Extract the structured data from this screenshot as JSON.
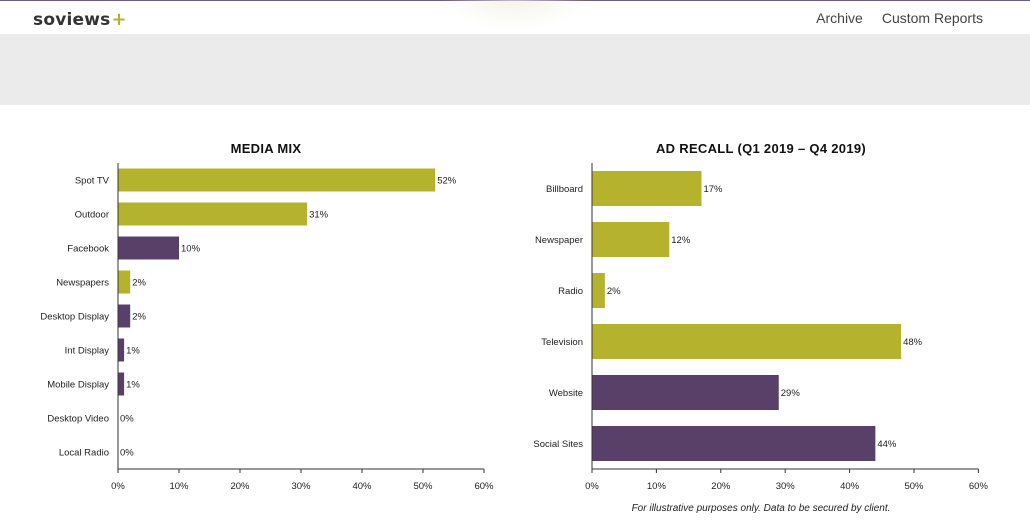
{
  "header": {
    "logo_text": "soviews",
    "logo_plus": "+",
    "nav": [
      "Archive",
      "Custom Reports"
    ]
  },
  "colors": {
    "olive": "#b5b32e",
    "purple": "#594069",
    "axis": "#333333"
  },
  "footnote": "For illustrative purposes only. Data to be secured by client.",
  "chart_data": [
    {
      "type": "bar",
      "orientation": "horizontal",
      "title": "MEDIA MIX",
      "categories": [
        "Spot TV",
        "Outdoor",
        "Facebook",
        "Newspapers",
        "Desktop Display",
        "Int Display",
        "Mobile Display",
        "Desktop Video",
        "Local Radio"
      ],
      "values": [
        52,
        31,
        10,
        2,
        2,
        1,
        1,
        0,
        0
      ],
      "value_labels": [
        "52%",
        "31%",
        "10%",
        "2%",
        "2%",
        "1%",
        "1%",
        "0%",
        "0%"
      ],
      "bar_colors": [
        "#b5b32e",
        "#b5b32e",
        "#594069",
        "#b5b32e",
        "#594069",
        "#594069",
        "#594069",
        "#594069",
        "#594069"
      ],
      "xticks": [
        "0%",
        "10%",
        "20%",
        "30%",
        "40%",
        "50%",
        "60%"
      ],
      "xlim": [
        0,
        60
      ],
      "grid": false
    },
    {
      "type": "bar",
      "orientation": "horizontal",
      "title": "AD RECALL (Q1 2019 – Q4 2019)",
      "categories": [
        "Billboard",
        "Newspaper",
        "Radio",
        "Television",
        "Website",
        "Social Sites"
      ],
      "values": [
        17,
        12,
        2,
        48,
        29,
        44
      ],
      "value_labels": [
        "17%",
        "12%",
        "2%",
        "48%",
        "29%",
        "44%"
      ],
      "bar_colors": [
        "#b5b32e",
        "#b5b32e",
        "#b5b32e",
        "#b5b32e",
        "#594069",
        "#594069"
      ],
      "xticks": [
        "0%",
        "10%",
        "20%",
        "30%",
        "40%",
        "50%",
        "60%"
      ],
      "xlim": [
        0,
        60
      ],
      "grid": false
    }
  ]
}
